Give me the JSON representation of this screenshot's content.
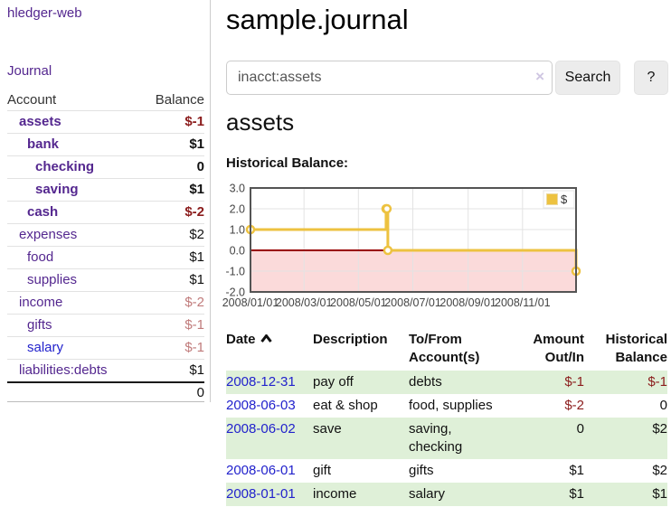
{
  "app": {
    "brand": "hledger-web",
    "nav_journal": "Journal"
  },
  "sidebar": {
    "headers": {
      "account": "Account",
      "balance": "Balance"
    },
    "accounts": [
      {
        "name": "assets",
        "balance": "$-1",
        "depth": 1,
        "bold": true,
        "neg": "strong"
      },
      {
        "name": "bank",
        "balance": "$1",
        "depth": 2,
        "bold": true,
        "neg": "none"
      },
      {
        "name": "checking",
        "balance": "0",
        "depth": 3,
        "bold": true,
        "neg": "none"
      },
      {
        "name": "saving",
        "balance": "$1",
        "depth": 3,
        "bold": true,
        "neg": "none"
      },
      {
        "name": "cash",
        "balance": "$-2",
        "depth": 2,
        "bold": true,
        "neg": "strong"
      },
      {
        "name": "expenses",
        "balance": "$2",
        "depth": 1,
        "bold": false,
        "neg": "none"
      },
      {
        "name": "food",
        "balance": "$1",
        "depth": 2,
        "bold": false,
        "neg": "none"
      },
      {
        "name": "supplies",
        "balance": "$1",
        "depth": 2,
        "bold": false,
        "neg": "none"
      },
      {
        "name": "income",
        "balance": "$-2",
        "depth": 1,
        "bold": false,
        "neg": "soft"
      },
      {
        "name": "gifts",
        "balance": "$-1",
        "depth": 2,
        "bold": false,
        "neg": "soft"
      },
      {
        "name": "salary",
        "balance": "$-1",
        "depth": 2,
        "bold": false,
        "neg": "soft",
        "blue": true
      },
      {
        "name": "liabilities:debts",
        "balance": "$1",
        "depth": 1,
        "bold": false,
        "neg": "none"
      }
    ],
    "total": "0"
  },
  "header": {
    "title": "sample.journal"
  },
  "search": {
    "value": "inacct:assets",
    "clear_icon": "×",
    "button_label": "Search",
    "help_label": "?"
  },
  "account_page": {
    "title": "assets",
    "chart_heading": "Historical Balance:"
  },
  "chart_data": {
    "type": "line",
    "subtype": "step-after",
    "title": "Historical Balance:",
    "legend": {
      "label": "$",
      "position": "top-right"
    },
    "ylim": [
      -2,
      3
    ],
    "xlim_days": [
      0,
      365
    ],
    "y_ticks": [
      "3.0",
      "2.0",
      "1.0",
      "0.0",
      "-1.0",
      "-2.0"
    ],
    "x_ticks": [
      {
        "label": "2008/01/01",
        "day": 0
      },
      {
        "label": "2008/03/01",
        "day": 60
      },
      {
        "label": "2008/05/01",
        "day": 121
      },
      {
        "label": "2008/07/01",
        "day": 182
      },
      {
        "label": "2008/09/01",
        "day": 244
      },
      {
        "label": "2008/11/01",
        "day": 305
      }
    ],
    "series": [
      {
        "name": "$",
        "points": [
          {
            "date": "2008-01-01",
            "day": 0,
            "value": 1
          },
          {
            "date": "2008-06-01",
            "day": 152,
            "value": 2
          },
          {
            "date": "2008-06-02",
            "day": 153,
            "value": 2
          },
          {
            "date": "2008-06-03",
            "day": 154,
            "value": 0
          },
          {
            "date": "2008-12-31",
            "day": 365,
            "value": -1
          }
        ]
      }
    ],
    "colors": {
      "line": "#edc240",
      "marker_fill": "#ffffff",
      "negative_fill": "#fbdada",
      "zero_line": "#990000",
      "grid": "#e3e3e3",
      "border": "#545454",
      "tick_text": "#444444",
      "legend_border": "#e6e6e6",
      "legend_box_stroke": "#ecd9a0"
    }
  },
  "register": {
    "headers": {
      "date": "Date",
      "description": "Description",
      "accounts": "To/From Account(s)",
      "amount": "Amount Out/In",
      "balance": "Historical Balance"
    },
    "rows": [
      {
        "date": "2008-12-31",
        "description": "pay off",
        "accounts": "debts",
        "amount": "$-1",
        "balance": "$-1",
        "amount_neg": true,
        "balance_neg": true,
        "shaded": true
      },
      {
        "date": "2008-06-03",
        "description": "eat & shop",
        "accounts": "food, supplies",
        "amount": "$-2",
        "balance": "0",
        "amount_neg": true,
        "balance_neg": false,
        "shaded": false
      },
      {
        "date": "2008-06-02",
        "description": "save",
        "accounts": "saving, checking",
        "amount": "0",
        "balance": "$2",
        "amount_neg": false,
        "balance_neg": false,
        "shaded": true
      },
      {
        "date": "2008-06-01",
        "description": "gift",
        "accounts": "gifts",
        "amount": "$1",
        "balance": "$2",
        "amount_neg": false,
        "balance_neg": false,
        "shaded": false
      },
      {
        "date": "2008-01-01",
        "description": "income",
        "accounts": "salary",
        "amount": "$1",
        "balance": "$1",
        "amount_neg": false,
        "balance_neg": false,
        "shaded": true
      }
    ]
  }
}
